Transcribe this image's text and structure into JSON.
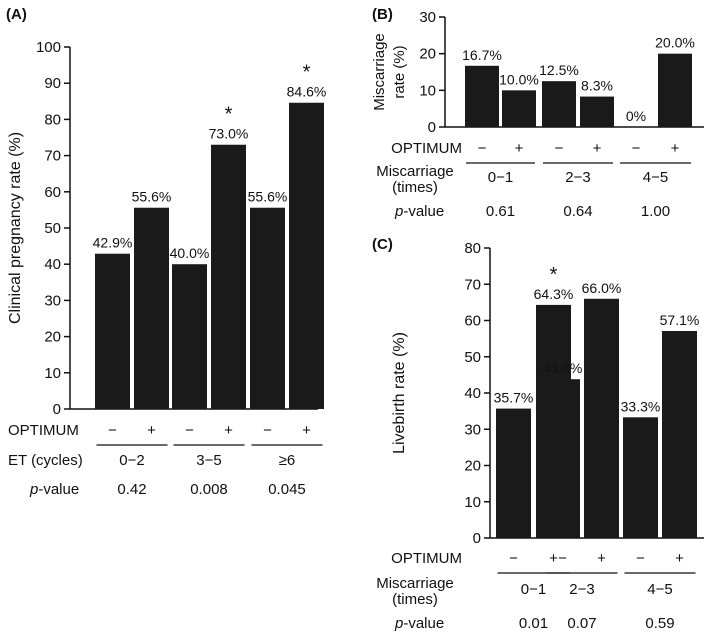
{
  "chart_data": [
    {
      "panel_label": "(A)",
      "type": "bar",
      "ylabel": "Clinical pregnancy rate (%)",
      "ylim": [
        0,
        100
      ],
      "yticks": [
        0,
        10,
        20,
        30,
        40,
        50,
        60,
        70,
        80,
        90,
        100
      ],
      "bar_labels": [
        "42.9%",
        "55.6%",
        "40.0%",
        "73.0%",
        "55.6%",
        "84.6%"
      ],
      "values": [
        42.9,
        55.6,
        40.0,
        73.0,
        55.6,
        84.6
      ],
      "groups": [
        "0−2",
        "3−5",
        "≥6"
      ],
      "group_row_label": "ET (cycles)",
      "treatment_row_label": "OPTIMUM",
      "treatment_signs": [
        "−",
        "+"
      ],
      "pvalue_label": "p",
      "pvalue_suffix": "-value",
      "pvalues": [
        "0.42",
        "0.008",
        "0.045"
      ],
      "significance_marker": "*",
      "significant_bars": [
        3,
        5
      ]
    },
    {
      "panel_label": "(B)",
      "type": "bar",
      "ylabel_lines": [
        "Miscarriage",
        "rate (%)"
      ],
      "ylim": [
        0,
        30
      ],
      "yticks": [
        0,
        10,
        20,
        30
      ],
      "bar_labels": [
        "16.7%",
        "10.0%",
        "12.5%",
        "8.3%",
        "0%",
        "20.0%"
      ],
      "values": [
        16.7,
        10.0,
        12.5,
        8.3,
        0,
        20.0
      ],
      "groups": [
        "0−1",
        "2−3",
        "4−5"
      ],
      "group_row_label_lines": [
        "Miscarriage",
        "(times)"
      ],
      "treatment_row_label": "OPTIMUM",
      "treatment_signs": [
        "−",
        "+"
      ],
      "pvalue_label": "p",
      "pvalue_suffix": "-value",
      "pvalues": [
        "0.61",
        "0.64",
        "1.00"
      ],
      "significance_marker": "",
      "significant_bars": []
    },
    {
      "panel_label": "(C)",
      "type": "bar",
      "ylabel": "Livebirth rate (%)",
      "ylim": [
        0,
        80
      ],
      "yticks": [
        0,
        10,
        20,
        30,
        40,
        50,
        60,
        70,
        80
      ],
      "bar_labels": [
        "35.7%",
        "64.3%",
        "43.8%",
        "66.0%",
        "33.3%",
        "57.1%"
      ],
      "values": [
        35.7,
        64.3,
        43.8,
        66.0,
        33.3,
        57.1
      ],
      "groups": [
        "0−1",
        "2−3",
        "4−5"
      ],
      "group_row_label_lines": [
        "Miscarriage",
        "(times)"
      ],
      "treatment_row_label": "OPTIMUM",
      "treatment_signs": [
        "−",
        "+"
      ],
      "pvalue_label": "p",
      "pvalue_suffix": "-value",
      "pvalues": [
        "0.01",
        "0.07",
        "0.59"
      ],
      "significance_marker": "*",
      "significant_bars": [
        1
      ]
    }
  ],
  "style": {
    "bar_color": "#1a1a1a",
    "axis_color": "#111111",
    "text_color": "#111111"
  }
}
